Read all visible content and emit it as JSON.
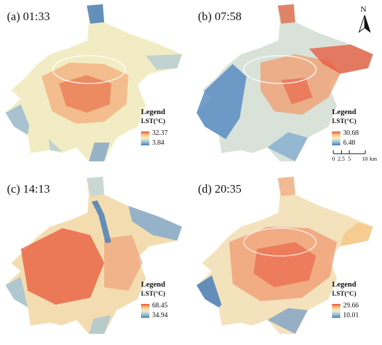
{
  "panels": [
    {
      "id": "a",
      "label": "(a) 01:33",
      "legend_title": "Legend",
      "legend_unit": "LST(°C)",
      "max": "32.37",
      "min": "3.84"
    },
    {
      "id": "b",
      "label": "(b) 07:58",
      "legend_title": "Legend",
      "legend_unit": "LST(°C)",
      "max": "30.68",
      "min": "6.48"
    },
    {
      "id": "c",
      "label": "(c) 14:13",
      "legend_title": "Legend",
      "legend_unit": "LST(°C)",
      "max": "68.45",
      "min": "34.94"
    },
    {
      "id": "d",
      "label": "(d) 20:35",
      "legend_title": "Legend",
      "legend_unit": "LST(°C)",
      "max": "29.66",
      "min": "10.01"
    }
  ],
  "north_arrow": {
    "letter": "N"
  },
  "scale_bar": {
    "ticks": [
      "0",
      "2.5",
      "5",
      "10"
    ],
    "unit": "km"
  },
  "colors": {
    "hot": "#e8553a",
    "warm": "#f6c785",
    "mid": "#f3f0c9",
    "cool": "#9ec3d8",
    "cold": "#4a7fba"
  }
}
